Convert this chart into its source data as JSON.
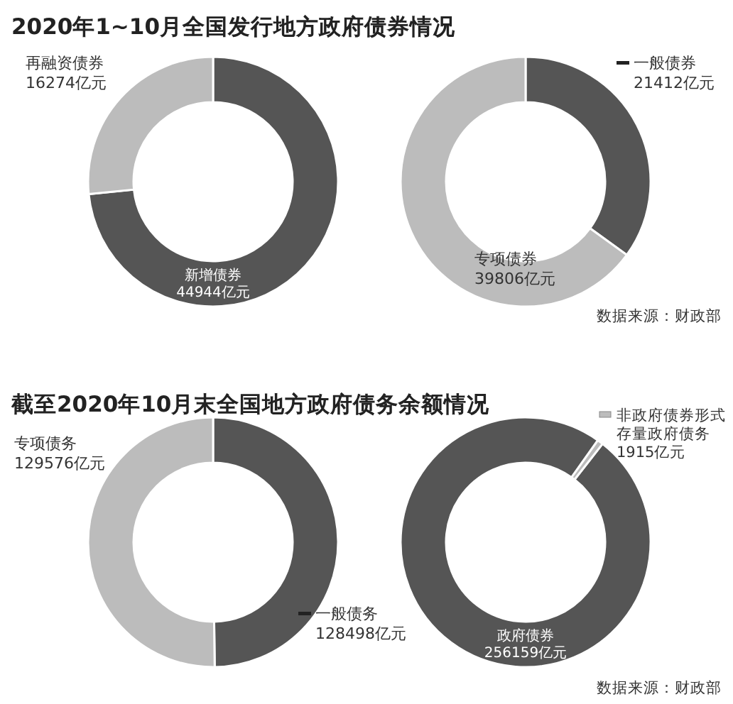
{
  "chart_data": [
    {
      "type": "donut",
      "title": "2020年1~10月全国发行地方政府债券情况",
      "categories": [
        "新增债券",
        "再融资债券"
      ],
      "values": [
        44944,
        16274
      ],
      "colors": [
        "#555555",
        "#bcbcbc"
      ],
      "value_labels": [
        "44944亿元",
        "16274亿元"
      ]
    },
    {
      "type": "donut",
      "categories": [
        "一般债券",
        "专项债券"
      ],
      "values": [
        21412,
        39806
      ],
      "colors": [
        "#555555",
        "#bcbcbc"
      ],
      "value_labels": [
        "21412亿元",
        "39806亿元"
      ],
      "annotations": [
        "数据来源：财政部"
      ]
    },
    {
      "type": "donut",
      "title": "截至2020年10月末全国地方政府债务余额情况",
      "categories": [
        "一般债务",
        "专项债务"
      ],
      "values": [
        128498,
        129576
      ],
      "colors": [
        "#555555",
        "#bcbcbc"
      ],
      "value_labels": [
        "128498亿元",
        "129576亿元"
      ]
    },
    {
      "type": "donut",
      "categories": [
        "政府债券",
        "非政府债券形式存量政府债务"
      ],
      "values": [
        256159,
        1915
      ],
      "colors": [
        "#555555",
        "#bcbcbc"
      ],
      "value_labels": [
        "256159亿元",
        "1915亿元"
      ],
      "annotations": [
        "数据来源：财政部"
      ]
    }
  ]
}
